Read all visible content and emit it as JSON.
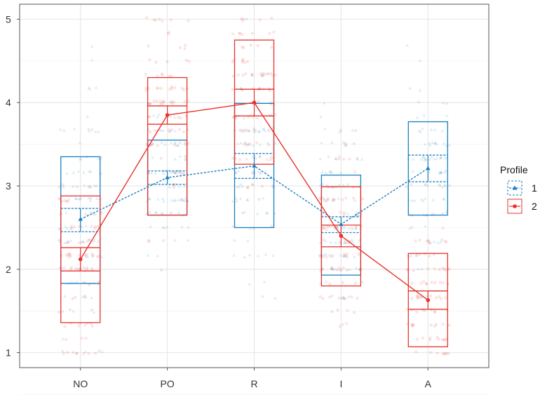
{
  "chart_data": {
    "type": "boxplot-line",
    "title": "",
    "xlabel": "",
    "ylabel": "",
    "categories": [
      "NO",
      "PO",
      "R",
      "I",
      "A"
    ],
    "ylim": [
      0.82,
      5.18
    ],
    "yticks": [
      1,
      2,
      3,
      4,
      5
    ],
    "grid": true,
    "legend": {
      "title": "Profile",
      "position": "right"
    },
    "series": [
      {
        "name": "1",
        "color": "#1a7fc1",
        "line_style": "dashed",
        "marker": "triangle",
        "means": [
          2.6,
          3.1,
          3.24,
          2.54,
          3.21
        ],
        "boxes": [
          {
            "lower": 1.83,
            "upper": 3.35,
            "ci_low": 2.45,
            "ci_high": 2.73
          },
          {
            "lower": 2.65,
            "upper": 3.55,
            "ci_low": 3.02,
            "ci_high": 3.18
          },
          {
            "lower": 2.5,
            "upper": 3.99,
            "ci_low": 3.09,
            "ci_high": 3.39
          },
          {
            "lower": 1.93,
            "upper": 3.13,
            "ci_low": 2.44,
            "ci_high": 2.63
          },
          {
            "lower": 2.65,
            "upper": 3.77,
            "ci_low": 3.05,
            "ci_high": 3.37
          }
        ]
      },
      {
        "name": "2",
        "color": "#e8332c",
        "line_style": "solid",
        "marker": "circle",
        "means": [
          2.12,
          3.85,
          4.0,
          2.4,
          1.63
        ],
        "boxes": [
          {
            "lower": 1.36,
            "upper": 2.88,
            "ci_low": 1.98,
            "ci_high": 2.26
          },
          {
            "lower": 2.65,
            "upper": 4.3,
            "ci_low": 3.74,
            "ci_high": 3.96
          },
          {
            "lower": 3.26,
            "upper": 4.75,
            "ci_low": 3.84,
            "ci_high": 4.16
          },
          {
            "lower": 1.8,
            "upper": 2.99,
            "ci_low": 2.27,
            "ci_high": 2.53
          },
          {
            "lower": 1.07,
            "upper": 2.19,
            "ci_low": 1.52,
            "ci_high": 1.74
          }
        ]
      }
    ]
  }
}
